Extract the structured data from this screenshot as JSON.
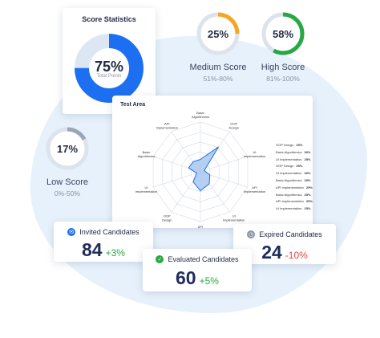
{
  "score_statistics": {
    "title": "Score Statistics",
    "percent": "75%",
    "caption": "Total Points",
    "fraction": 0.75,
    "color": "#1d6ff2"
  },
  "medium_score": {
    "percent": "25%",
    "name": "Medium Score",
    "range": "51%-80%",
    "fraction": 0.25,
    "color": "#f5a623"
  },
  "high_score": {
    "percent": "58%",
    "name": "High Score",
    "range": "81%-100%",
    "fraction": 0.58,
    "color": "#27a844"
  },
  "low_score": {
    "percent": "17%",
    "name": "Low Score",
    "range": "0%-50%",
    "fraction": 0.17,
    "color": "#9aa5b8"
  },
  "test_area": {
    "title": "Test Area",
    "axes": [
      "Basic Algorithmics",
      "OOP Design",
      "UI Implementation",
      "API Implementation",
      "UI Implementation",
      "API Implementation",
      "OOP Design",
      "UI Implementation",
      "Basic Algorithmics",
      "API Implementation"
    ],
    "values": [
      0.25,
      0.62,
      0.08,
      0.2,
      0.3,
      0.38,
      0.25,
      0.08,
      0.25,
      0.25
    ],
    "legend": [
      {
        "label": "OOP Design",
        "value": "25%"
      },
      {
        "label": "Basic Algorithmics",
        "value": "30%"
      },
      {
        "label": "UI Implementation",
        "value": "25%"
      },
      {
        "label": "OOP Design",
        "value": "25%"
      },
      {
        "label": "UI Implementation",
        "value": "30%"
      },
      {
        "label": "Basic Algorithmics",
        "value": "25%"
      },
      {
        "label": "API Implementation",
        "value": "25%"
      },
      {
        "label": "Basic Algorithmics",
        "value": "25%"
      },
      {
        "label": "API Implementation",
        "value": "25%"
      },
      {
        "label": "UI Implementation",
        "value": "25%"
      }
    ],
    "fill_color": "#a9c8f0",
    "stroke_color": "#1d6ff2"
  },
  "invited": {
    "label": "Invited Candidates",
    "value": "84",
    "delta": "+3%",
    "delta_color": "#27a844",
    "icon_color": "#1d6ff2",
    "icon": "mail-icon"
  },
  "evaluated": {
    "label": "Evaluated Candidates",
    "value": "60",
    "delta": "+5%",
    "delta_color": "#27a844",
    "icon_color": "#27a844",
    "icon": "check-icon"
  },
  "expired": {
    "label": "Expired Candidates",
    "value": "24",
    "delta": "-10%",
    "delta_color": "#e04848",
    "icon_color": "#8a93a8",
    "icon": "clock-icon"
  }
}
